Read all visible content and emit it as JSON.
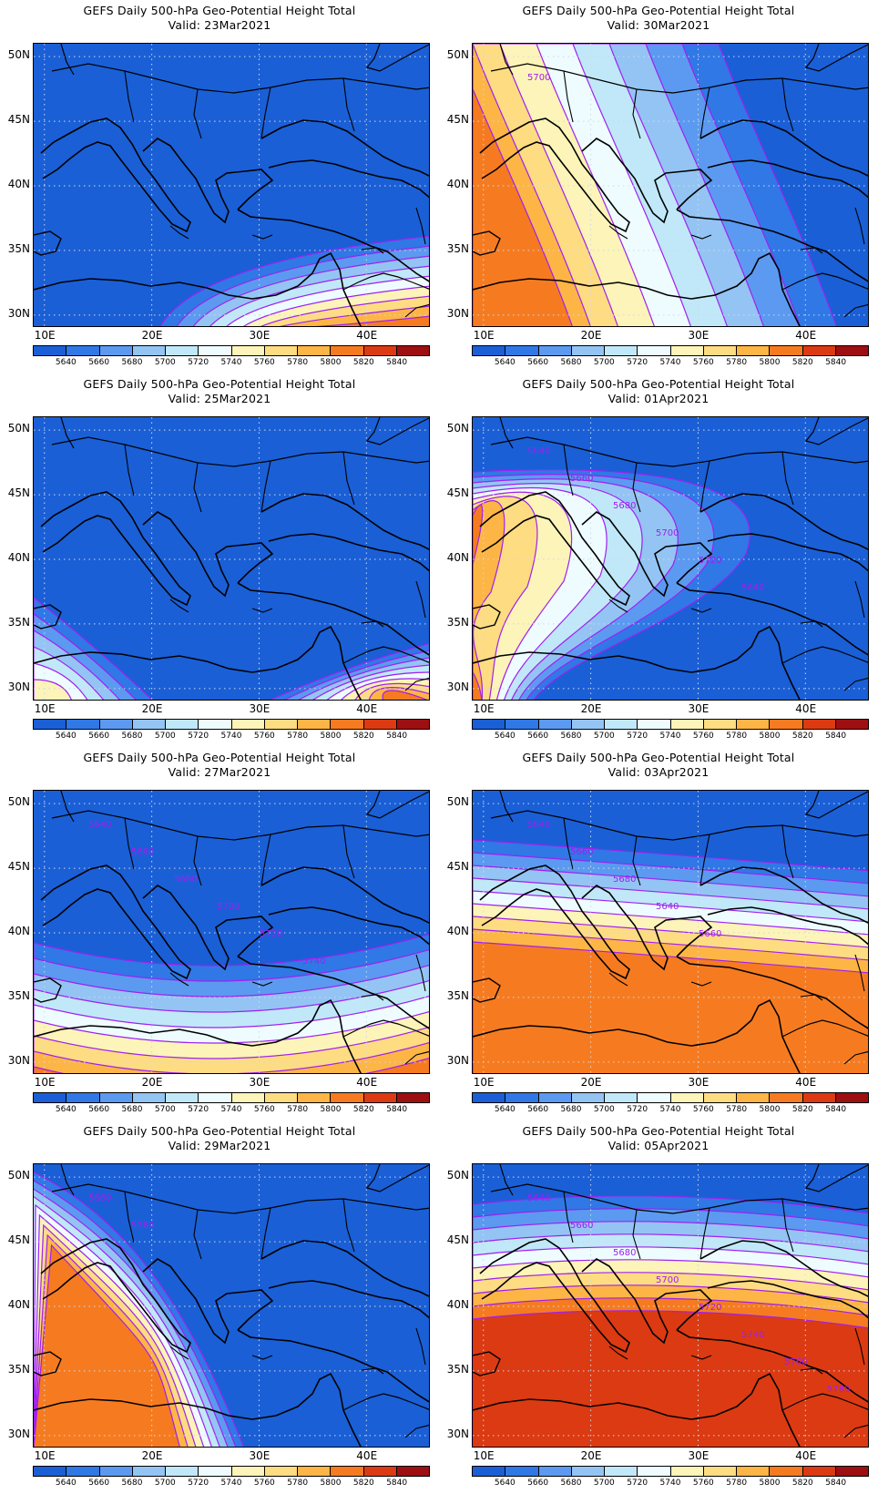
{
  "panel_titles": [
    [
      "GEFS Daily 500-hPa Geo-Potential Height Total",
      "Valid: 23Mar2021"
    ],
    [
      "GEFS Daily 500-hPa Geo-Potential Height Total",
      "Valid: 30Mar2021"
    ],
    [
      "GEFS Daily 500-hPa Geo-Potential Height Total",
      "Valid: 25Mar2021"
    ],
    [
      "GEFS Daily 500-hPa Geo-Potential Height Total",
      "Valid: 01Apr2021"
    ],
    [
      "GEFS Daily 500-hPa Geo-Potential Height Total",
      "Valid: 27Mar2021"
    ],
    [
      "GEFS Daily 500-hPa Geo-Potential Height Total",
      "Valid: 03Apr2021"
    ],
    [
      "GEFS Daily 500-hPa Geo-Potential Height Total",
      "Valid: 29Mar2021"
    ],
    [
      "GEFS Daily 500-hPa Geo-Potential Height Total",
      "Valid: 05Apr2021"
    ]
  ],
  "lat_labels": [
    "50N",
    "45N",
    "40N",
    "35N",
    "30N"
  ],
  "lon_labels": [
    "10E",
    "20E",
    "30E",
    "40E"
  ],
  "colorbar": {
    "labels": [
      "5640",
      "5660",
      "5680",
      "5700",
      "5720",
      "5740",
      "5760",
      "5780",
      "5800",
      "5820",
      "5840"
    ],
    "colors": [
      "#1a5fd6",
      "#2f78e6",
      "#5b9af0",
      "#94c4f4",
      "#c0e8f8",
      "#eefcff",
      "#fcf4b8",
      "#fedc82",
      "#fdb546",
      "#f67b20",
      "#dc3a12",
      "#9e0f12"
    ]
  },
  "contour_labels": {
    "30Mar2021": [
      "5700"
    ],
    "01Apr2021": [
      "5640",
      "5660",
      "5680",
      "5700",
      "5720",
      "5640"
    ],
    "27Mar2021": [
      "5640",
      "5660",
      "5680",
      "5700",
      "5720",
      "5740"
    ],
    "03Apr2021": [
      "5640",
      "5660",
      "5680",
      "5640",
      "5660"
    ],
    "29Mar2021": [
      "5660",
      "5780"
    ],
    "05Apr2021": [
      "5640",
      "5660",
      "5680",
      "5700",
      "5720",
      "5740",
      "5760",
      "5780"
    ]
  }
}
